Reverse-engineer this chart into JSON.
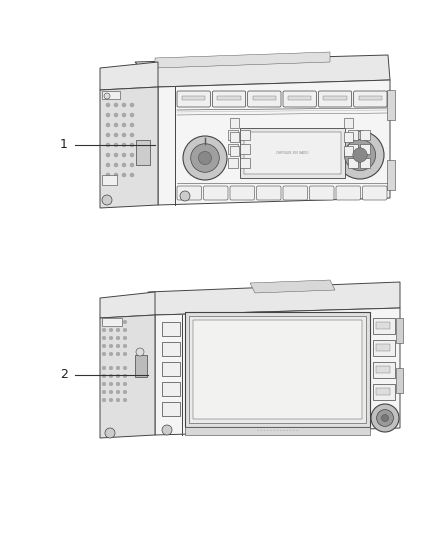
{
  "background_color": "#ffffff",
  "fig_width": 4.38,
  "fig_height": 5.33,
  "dpi": 100,
  "outline_color": "#444444",
  "fill_front": "#f5f5f5",
  "fill_top": "#e8e8e8",
  "fill_side": "#d8d8d8",
  "fill_left_box": "#e0e0e0",
  "fill_grille": "#d0d0d0",
  "fill_button": "#f0f0f0",
  "fill_screen": "#ebebeb",
  "fill_dark": "#c0c0c0",
  "lw_main": 0.7,
  "lw_detail": 0.4
}
